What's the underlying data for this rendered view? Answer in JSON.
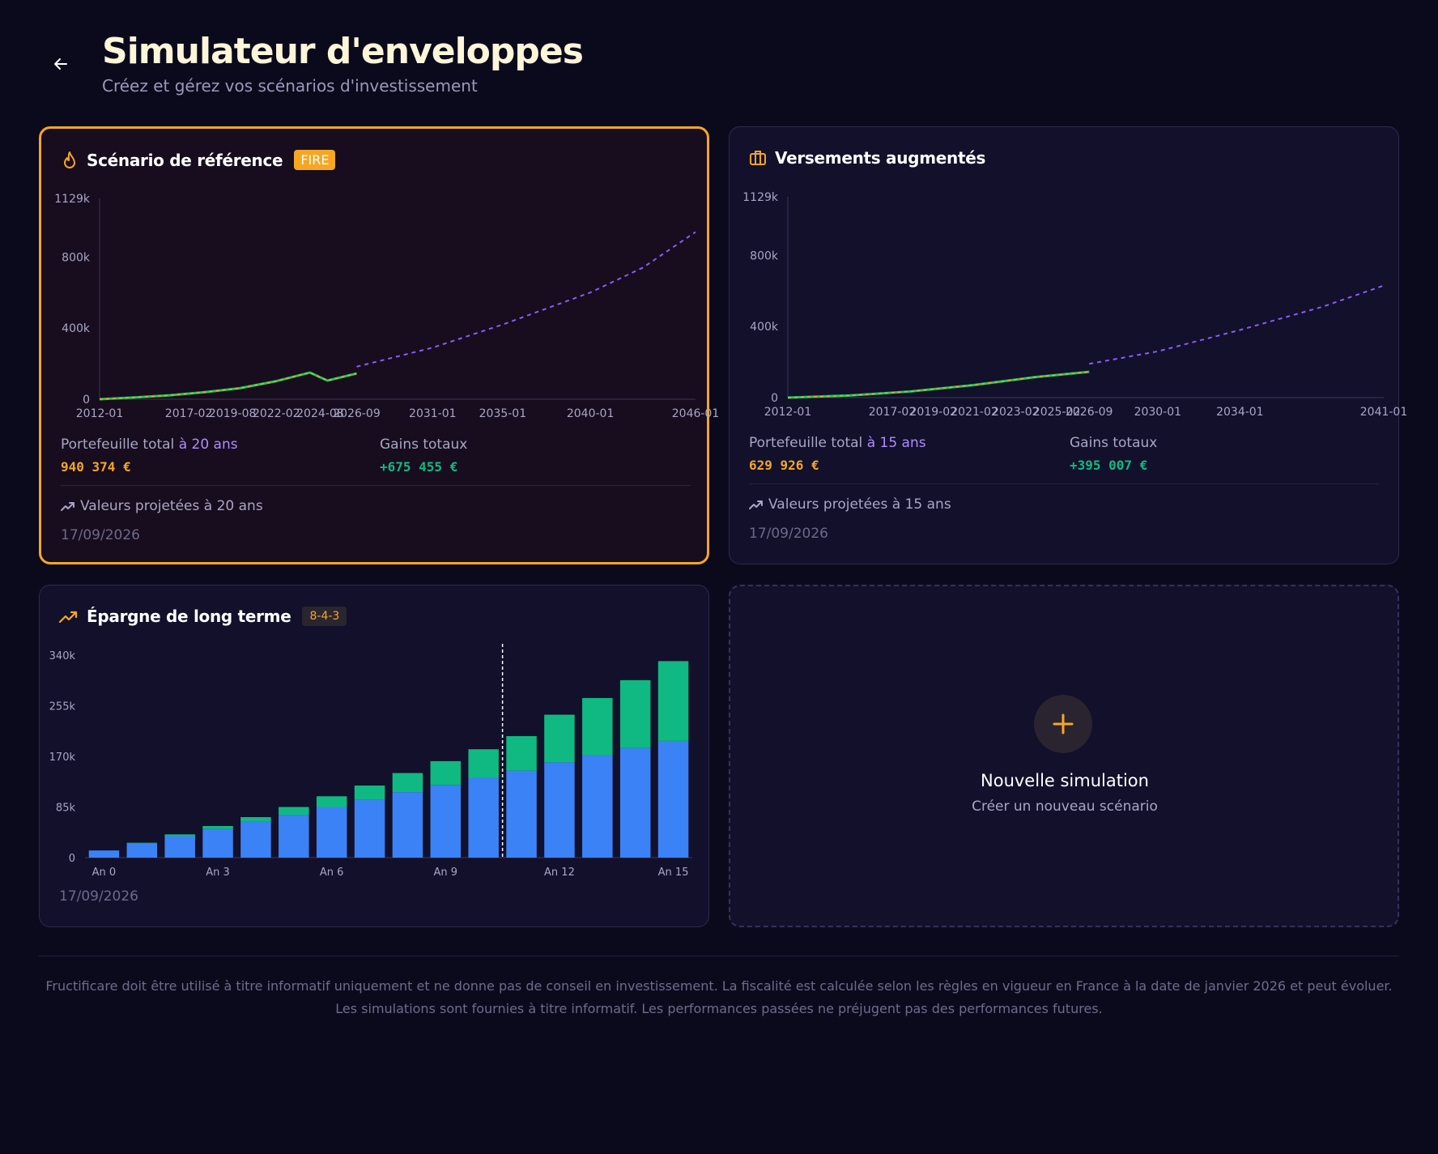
{
  "header": {
    "title": "Simulateur d'enveloppes",
    "subtitle": "Créez et gérez vos scénarios d'investissement"
  },
  "cards": [
    {
      "title": "Scénario de référence",
      "badge": "FIRE",
      "portfolio_label": "Portefeuille total",
      "horizon": "à 20 ans",
      "portfolio_value": "940 374 €",
      "gains_label": "Gains totaux",
      "gains_value": "+675 455 €",
      "projection_note": "Valeurs projetées à 20 ans",
      "date": "17/09/2026",
      "icon": "flame-icon",
      "selected": true
    },
    {
      "title": "Versements augmentés",
      "portfolio_label": "Portefeuille total",
      "horizon": "à 15 ans",
      "portfolio_value": "629 926 €",
      "gains_label": "Gains totaux",
      "gains_value": "+395 007 €",
      "projection_note": "Valeurs projetées à 15 ans",
      "date": "17/09/2026",
      "icon": "briefcase-icon"
    },
    {
      "title": "Épargne de long terme",
      "badge": "8-4-3",
      "date": "17/09/2026",
      "icon": "trending-up-icon"
    }
  ],
  "new_simulation": {
    "title": "Nouvelle simulation",
    "subtitle": "Créer un nouveau scénario",
    "icon": "plus-icon"
  },
  "disclaimer": {
    "line1": "Fructificare doit être utilisé à titre informatif uniquement et ne donne pas de conseil en investissement. La fiscalité est calculée selon les règles en vigueur en France à la date de janvier 2026 et peut évoluer.",
    "line2": "Les simulations sont fournies à titre informatif. Les performances passées ne préjugent pas des performances futures."
  },
  "colors": {
    "accent": "#f5a623",
    "historical_line": "#22c55e",
    "projection_line": "#8b5cf6",
    "bar_contributions": "#3b82f6",
    "bar_gains": "#10b981"
  },
  "chart_data": [
    {
      "type": "line",
      "ytick_labels": [
        "1129k",
        "800k",
        "400k",
        "0"
      ],
      "yticks": [
        1129,
        800,
        400,
        0
      ],
      "ylim": [
        0,
        1129
      ],
      "x_labels": [
        "2012-01",
        "2017-02",
        "2019-08",
        "2022-02",
        "2024-08",
        "2026-09",
        "2031-01",
        "2035-01",
        "2040-01",
        "2046-01"
      ],
      "series": [
        {
          "style": "solid",
          "x": [
            "2012-01",
            "2014-01",
            "2016-01",
            "2018-01",
            "2020-01",
            "2022-01",
            "2024-01",
            "2025-01",
            "2026-09"
          ],
          "y": [
            0,
            10,
            22,
            40,
            62,
            100,
            150,
            105,
            145
          ]
        },
        {
          "style": "dashed",
          "x": [
            "2026-09",
            "2031-01",
            "2035-01",
            "2040-01",
            "2043-01",
            "2046-01"
          ],
          "y": [
            183,
            290,
            420,
            600,
            740,
            940
          ]
        }
      ]
    },
    {
      "type": "line",
      "ytick_labels": [
        "1129k",
        "800k",
        "400k",
        "0"
      ],
      "yticks": [
        1129,
        800,
        400,
        0
      ],
      "ylim": [
        0,
        1129
      ],
      "x_labels": [
        "2012-01",
        "2017-02",
        "2019-02",
        "2021-02",
        "2023-02",
        "2025-02",
        "2026-09",
        "2030-01",
        "2034-01",
        "2041-01"
      ],
      "series": [
        {
          "style": "solid",
          "x": [
            "2012-01",
            "2015-01",
            "2018-01",
            "2021-01",
            "2024-01",
            "2026-09"
          ],
          "y": [
            0,
            12,
            35,
            70,
            115,
            145
          ]
        },
        {
          "style": "dashed",
          "x": [
            "2026-09",
            "2030-01",
            "2034-01",
            "2038-01",
            "2041-01"
          ],
          "y": [
            190,
            260,
            380,
            510,
            630
          ]
        }
      ]
    },
    {
      "type": "bar",
      "stacked": true,
      "ytick_labels": [
        "340k",
        "255k",
        "170k",
        "85k",
        "0"
      ],
      "yticks": [
        340,
        255,
        170,
        85,
        0
      ],
      "ylim": [
        0,
        340
      ],
      "categories": [
        "An 0",
        "An 1",
        "An 2",
        "An 3",
        "An 4",
        "An 5",
        "An 6",
        "An 7",
        "An 8",
        "An 9",
        "An 10",
        "An 11",
        "An 12",
        "An 13",
        "An 14",
        "An 15"
      ],
      "x_tick_labels": [
        "An 0",
        "An 3",
        "An 6",
        "An 9",
        "An 12",
        "An 15"
      ],
      "marker_after_category": "An 10",
      "series": [
        {
          "key": "contributions",
          "values": [
            12,
            24,
            36,
            48,
            60,
            72,
            85,
            97,
            110,
            122,
            134,
            146,
            160,
            172,
            184,
            196
          ]
        },
        {
          "key": "gains",
          "values": [
            0,
            1,
            3,
            5,
            8,
            13,
            18,
            24,
            32,
            40,
            48,
            58,
            80,
            96,
            114,
            134
          ]
        }
      ]
    }
  ]
}
